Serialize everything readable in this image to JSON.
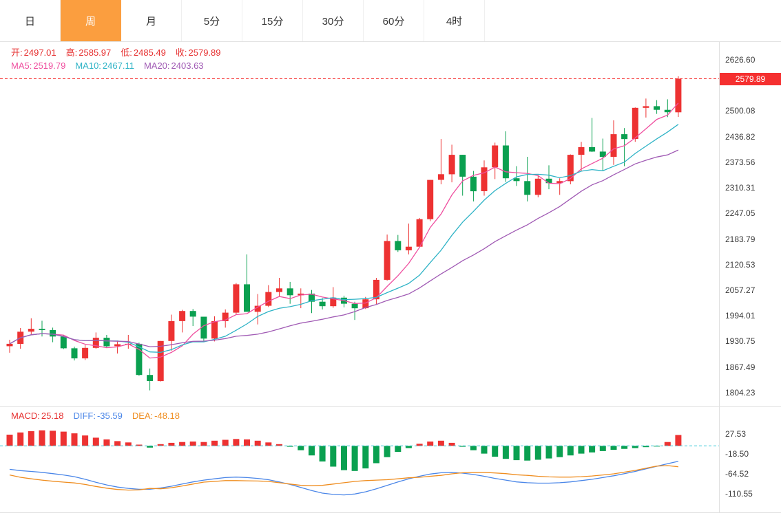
{
  "tabs": {
    "active_bg": "#fb9e3f",
    "items": [
      {
        "label": "日",
        "active": false
      },
      {
        "label": "周",
        "active": true
      },
      {
        "label": "月",
        "active": false
      },
      {
        "label": "5分",
        "active": false
      },
      {
        "label": "15分",
        "active": false
      },
      {
        "label": "30分",
        "active": false
      },
      {
        "label": "60分",
        "active": false
      },
      {
        "label": "4时",
        "active": false
      }
    ]
  },
  "legend": {
    "ohlc": [
      {
        "label": "开:",
        "value": "2497.01"
      },
      {
        "label": "高:",
        "value": "2585.97"
      },
      {
        "label": "低:",
        "value": "2485.49"
      },
      {
        "label": "收:",
        "value": "2579.89"
      }
    ],
    "ma": [
      {
        "label": "MA5:",
        "value": "2519.79",
        "color": "#ef4f9f"
      },
      {
        "label": "MA10:",
        "value": "2467.11",
        "color": "#2eb3c6"
      },
      {
        "label": "MA20:",
        "value": "2403.63",
        "color": "#a05ab4"
      }
    ]
  },
  "macd_legend": [
    {
      "label": "MACD:",
      "value": "25.18",
      "color": "#e62f2f"
    },
    {
      "label": "DIFF:",
      "value": "-35.59",
      "color": "#4a86e8"
    },
    {
      "label": "DEA:",
      "value": "-48.18",
      "color": "#ef8d1f"
    }
  ],
  "price_axis": {
    "labels": [
      "2626.60",
      "2500.08",
      "2436.82",
      "2373.56",
      "2310.31",
      "2247.05",
      "2183.79",
      "2120.53",
      "2057.27",
      "1994.01",
      "1930.75",
      "1867.49",
      "1804.23"
    ],
    "current": "2579.89",
    "badge_color": "#f53030"
  },
  "macd_axis": {
    "labels": [
      "27.53",
      "-18.50",
      "-64.52",
      "-110.55"
    ]
  },
  "chart_data": {
    "type": "candlestick+macd",
    "timeframe": "周",
    "up_color": "#ed3232",
    "down_color": "#0aa050",
    "current_price": 2579.89,
    "price_scale": {
      "top": 2626.6,
      "bottom": 1804.23
    },
    "macd_scale": {
      "top_label": 27.53,
      "label_step": 46.02
    },
    "ma_periods": [
      5,
      10,
      20
    ],
    "candles_ohlc": [
      [
        1919,
        1935,
        1903,
        1925
      ],
      [
        1925,
        1964,
        1913,
        1955
      ],
      [
        1955,
        1988,
        1946,
        1962
      ],
      [
        1962,
        1982,
        1943,
        1959
      ],
      [
        1959,
        1965,
        1929,
        1943
      ],
      [
        1943,
        1946,
        1912,
        1914
      ],
      [
        1914,
        1918,
        1884,
        1889
      ],
      [
        1889,
        1922,
        1885,
        1915
      ],
      [
        1915,
        1953,
        1913,
        1940
      ],
      [
        1940,
        1947,
        1916,
        1919
      ],
      [
        1919,
        1933,
        1901,
        1924
      ],
      [
        1924,
        1947,
        1913,
        1925
      ],
      [
        1925,
        1928,
        1846,
        1848
      ],
      [
        1848,
        1864,
        1810,
        1833
      ],
      [
        1833,
        1932,
        1832,
        1932
      ],
      [
        1932,
        1997,
        1908,
        1981
      ],
      [
        1981,
        2009,
        1953,
        2006
      ],
      [
        2006,
        2011,
        1969,
        1992
      ],
      [
        1992,
        1992,
        1932,
        1938
      ],
      [
        1938,
        1993,
        1931,
        1981
      ],
      [
        1981,
        2010,
        1965,
        2002
      ],
      [
        2002,
        2075,
        1998,
        2072
      ],
      [
        2072,
        2146,
        2010,
        2004
      ],
      [
        2004,
        2048,
        1973,
        2019
      ],
      [
        2019,
        2070,
        2016,
        2053
      ],
      [
        2053,
        2088,
        2042,
        2062
      ],
      [
        2062,
        2078,
        2024,
        2045
      ],
      [
        2045,
        2062,
        2013,
        2049
      ],
      [
        2049,
        2058,
        2001,
        2029
      ],
      [
        2029,
        2038,
        2010,
        2018
      ],
      [
        2018,
        2065,
        2014,
        2039
      ],
      [
        2039,
        2044,
        2015,
        2024
      ],
      [
        2024,
        2029,
        1984,
        2013
      ],
      [
        2013,
        2041,
        2011,
        2035
      ],
      [
        2035,
        2088,
        2023,
        2083
      ],
      [
        2083,
        2195,
        2081,
        2179
      ],
      [
        2179,
        2194,
        2152,
        2156
      ],
      [
        2156,
        2222,
        2146,
        2165
      ],
      [
        2165,
        2236,
        2164,
        2233
      ],
      [
        2233,
        2330,
        2228,
        2330
      ],
      [
        2330,
        2431,
        2319,
        2344
      ],
      [
        2344,
        2417,
        2324,
        2392
      ],
      [
        2392,
        2392,
        2291,
        2338
      ],
      [
        2338,
        2352,
        2277,
        2302
      ],
      [
        2302,
        2378,
        2291,
        2361
      ],
      [
        2361,
        2422,
        2332,
        2415
      ],
      [
        2415,
        2450,
        2325,
        2334
      ],
      [
        2334,
        2364,
        2315,
        2327
      ],
      [
        2327,
        2387,
        2277,
        2293
      ],
      [
        2293,
        2342,
        2287,
        2333
      ],
      [
        2333,
        2366,
        2307,
        2322
      ],
      [
        2322,
        2334,
        2293,
        2327
      ],
      [
        2327,
        2393,
        2319,
        2392
      ],
      [
        2392,
        2424,
        2351,
        2411
      ],
      [
        2411,
        2483,
        2399,
        2400
      ],
      [
        2400,
        2432,
        2353,
        2387
      ],
      [
        2387,
        2477,
        2367,
        2443
      ],
      [
        2443,
        2458,
        2364,
        2431
      ],
      [
        2431,
        2509,
        2424,
        2508
      ],
      [
        2508,
        2531,
        2484,
        2512
      ],
      [
        2512,
        2527,
        2493,
        2503
      ],
      [
        2503,
        2529,
        2485,
        2497
      ],
      [
        2497.01,
        2585.97,
        2485.49,
        2579.89
      ]
    ],
    "macd": {
      "histogram": [
        26,
        31,
        34,
        36,
        35,
        33,
        29,
        24,
        19,
        15,
        11,
        8,
        3,
        -4,
        4,
        7,
        9,
        10,
        9,
        12,
        14,
        16,
        15,
        12,
        8,
        4,
        -2,
        -10,
        -22,
        -36,
        -48,
        -56,
        -58,
        -52,
        -40,
        -26,
        -14,
        -5,
        5,
        10,
        12,
        7,
        -2,
        -10,
        -18,
        -25,
        -30,
        -33,
        -34,
        -32,
        -29,
        -26,
        -22,
        -18,
        -15,
        -12,
        -9,
        -7,
        -5,
        -3,
        -1,
        9,
        25.18
      ],
      "diff": [
        -54,
        -57,
        -59,
        -61,
        -64,
        -67,
        -71,
        -77,
        -84,
        -90,
        -95,
        -98,
        -100,
        -100,
        -97,
        -93,
        -88,
        -83,
        -79,
        -76,
        -73,
        -72,
        -73,
        -75,
        -78,
        -83,
        -89,
        -96,
        -103,
        -109,
        -112,
        -113,
        -111,
        -106,
        -99,
        -91,
        -83,
        -76,
        -70,
        -65,
        -62,
        -61,
        -63,
        -66,
        -70,
        -75,
        -79,
        -83,
        -85,
        -86,
        -86,
        -85,
        -83,
        -80,
        -77,
        -73,
        -69,
        -64,
        -59,
        -53,
        -47,
        -41,
        -35.59
      ],
      "dea": [
        -67,
        -72.5,
        -76,
        -79,
        -81.5,
        -83.5,
        -85.5,
        -89,
        -93.5,
        -97.5,
        -100.5,
        -102,
        -101.5,
        -98,
        -99,
        -96.5,
        -92.5,
        -88,
        -83.5,
        -82,
        -80,
        -80,
        -80.5,
        -81,
        -82,
        -85,
        -88,
        -91,
        -92,
        -91,
        -88,
        -85,
        -82,
        -80,
        -79,
        -78,
        -76,
        -73.5,
        -72.5,
        -70,
        -68,
        -64.5,
        -62,
        -61,
        -61,
        -62.5,
        -64,
        -66.5,
        -68,
        -70,
        -71.5,
        -72,
        -72,
        -71,
        -69.5,
        -67,
        -64.5,
        -60.5,
        -56.5,
        -51.5,
        -46.5,
        -45.5,
        -48.18
      ]
    }
  }
}
